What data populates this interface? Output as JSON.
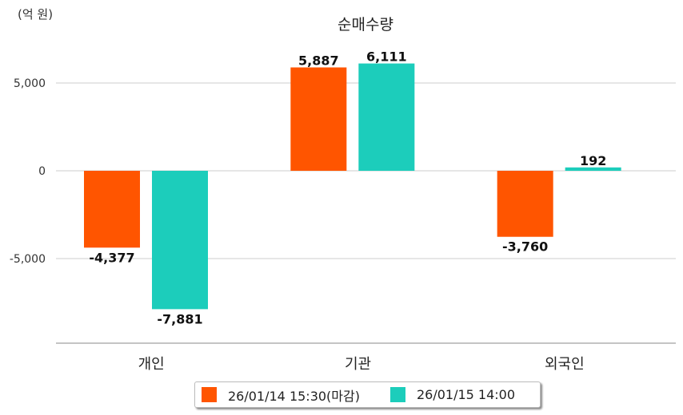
{
  "chart_data": {
    "type": "bar",
    "title": "순매수량",
    "unit_label": "(억 원)",
    "categories": [
      "개인",
      "기관",
      "외국인"
    ],
    "series": [
      {
        "name": "26/01/14 15:30(마감)",
        "color": "#ff5500",
        "values": [
          -4377,
          5887,
          -3760
        ],
        "labels": [
          "-4,377",
          "5,887",
          "-3,760"
        ]
      },
      {
        "name": "26/01/15 14:00",
        "color": "#1ccdbb",
        "values": [
          -7881,
          6111,
          192
        ],
        "labels": [
          "-7,881",
          "6,111",
          "192"
        ]
      }
    ],
    "yticks": [
      {
        "v": 5000,
        "label": "5,000"
      },
      {
        "v": 0,
        "label": "0"
      },
      {
        "v": -5000,
        "label": "-5,000"
      }
    ],
    "ylim": [
      -9818,
      7000
    ],
    "grid": true,
    "legend": "bottom"
  }
}
